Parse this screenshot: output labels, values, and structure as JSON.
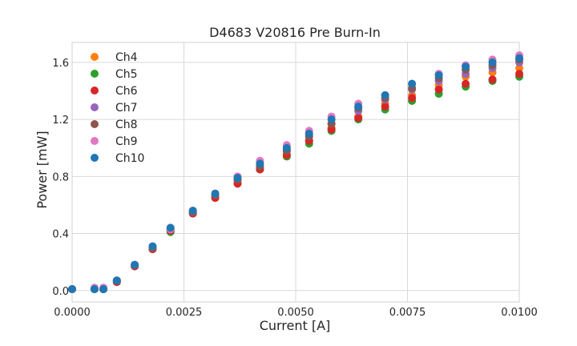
{
  "chart_data": {
    "type": "scatter",
    "title": "D4683 V20816 Pre Burn-In",
    "xlabel": "Current [A]",
    "ylabel": "Power [mW]",
    "xlim": [
      0.0,
      0.01
    ],
    "ylim": [
      -0.08,
      1.74
    ],
    "x_ticks": [
      0.0,
      0.0025,
      0.005,
      0.0075,
      0.01
    ],
    "x_tick_labels": [
      "0.0000",
      "0.0025",
      "0.0050",
      "0.0075",
      "0.0100"
    ],
    "y_ticks": [
      0.0,
      0.4,
      0.8,
      1.2,
      1.6
    ],
    "y_tick_labels": [
      "0.0",
      "0.4",
      "0.8",
      "1.2",
      "1.6"
    ],
    "grid": true,
    "legend_position": "top-left",
    "x": [
      0.0,
      0.0005,
      0.0007,
      0.001,
      0.0014,
      0.0018,
      0.0022,
      0.0027,
      0.0032,
      0.0037,
      0.0042,
      0.0048,
      0.0053,
      0.0058,
      0.0064,
      0.007,
      0.0076,
      0.0082,
      0.0088,
      0.0094,
      0.01
    ],
    "series": [
      {
        "name": "Ch4",
        "color": "#ff7f0e",
        "values": [
          0.01,
          0.01,
          0.01,
          0.06,
          0.18,
          0.3,
          0.42,
          0.55,
          0.66,
          0.77,
          0.86,
          0.96,
          1.05,
          1.14,
          1.22,
          1.31,
          1.37,
          1.44,
          1.5,
          1.53,
          1.56
        ]
      },
      {
        "name": "Ch5",
        "color": "#2ca02c",
        "values": [
          0.01,
          0.01,
          0.01,
          0.06,
          0.17,
          0.29,
          0.41,
          0.54,
          0.65,
          0.75,
          0.85,
          0.94,
          1.03,
          1.12,
          1.2,
          1.27,
          1.33,
          1.38,
          1.43,
          1.47,
          1.5
        ]
      },
      {
        "name": "Ch6",
        "color": "#d62728",
        "values": [
          0.01,
          0.01,
          0.01,
          0.06,
          0.17,
          0.29,
          0.42,
          0.54,
          0.65,
          0.75,
          0.85,
          0.95,
          1.05,
          1.13,
          1.21,
          1.29,
          1.35,
          1.41,
          1.45,
          1.48,
          1.52
        ]
      },
      {
        "name": "Ch7",
        "color": "#9467bd",
        "values": [
          0.01,
          0.01,
          0.01,
          0.07,
          0.18,
          0.3,
          0.43,
          0.55,
          0.67,
          0.78,
          0.88,
          0.99,
          1.09,
          1.17,
          1.26,
          1.34,
          1.41,
          1.47,
          1.52,
          1.56,
          1.6
        ]
      },
      {
        "name": "Ch8",
        "color": "#8c564b",
        "values": [
          0.01,
          0.01,
          0.01,
          0.07,
          0.18,
          0.3,
          0.43,
          0.55,
          0.67,
          0.78,
          0.87,
          0.98,
          1.08,
          1.17,
          1.28,
          1.35,
          1.42,
          1.49,
          1.55,
          1.58,
          1.62
        ]
      },
      {
        "name": "Ch9",
        "color": "#e377c2",
        "values": [
          0.01,
          0.02,
          0.02,
          0.07,
          0.18,
          0.31,
          0.43,
          0.56,
          0.68,
          0.8,
          0.91,
          1.02,
          1.12,
          1.22,
          1.31,
          1.37,
          1.45,
          1.52,
          1.58,
          1.62,
          1.65
        ]
      },
      {
        "name": "Ch10",
        "color": "#1f77b4",
        "values": [
          0.01,
          0.01,
          0.01,
          0.07,
          0.18,
          0.31,
          0.44,
          0.56,
          0.68,
          0.79,
          0.89,
          1.0,
          1.1,
          1.2,
          1.29,
          1.37,
          1.45,
          1.51,
          1.57,
          1.6,
          1.63
        ]
      }
    ]
  }
}
